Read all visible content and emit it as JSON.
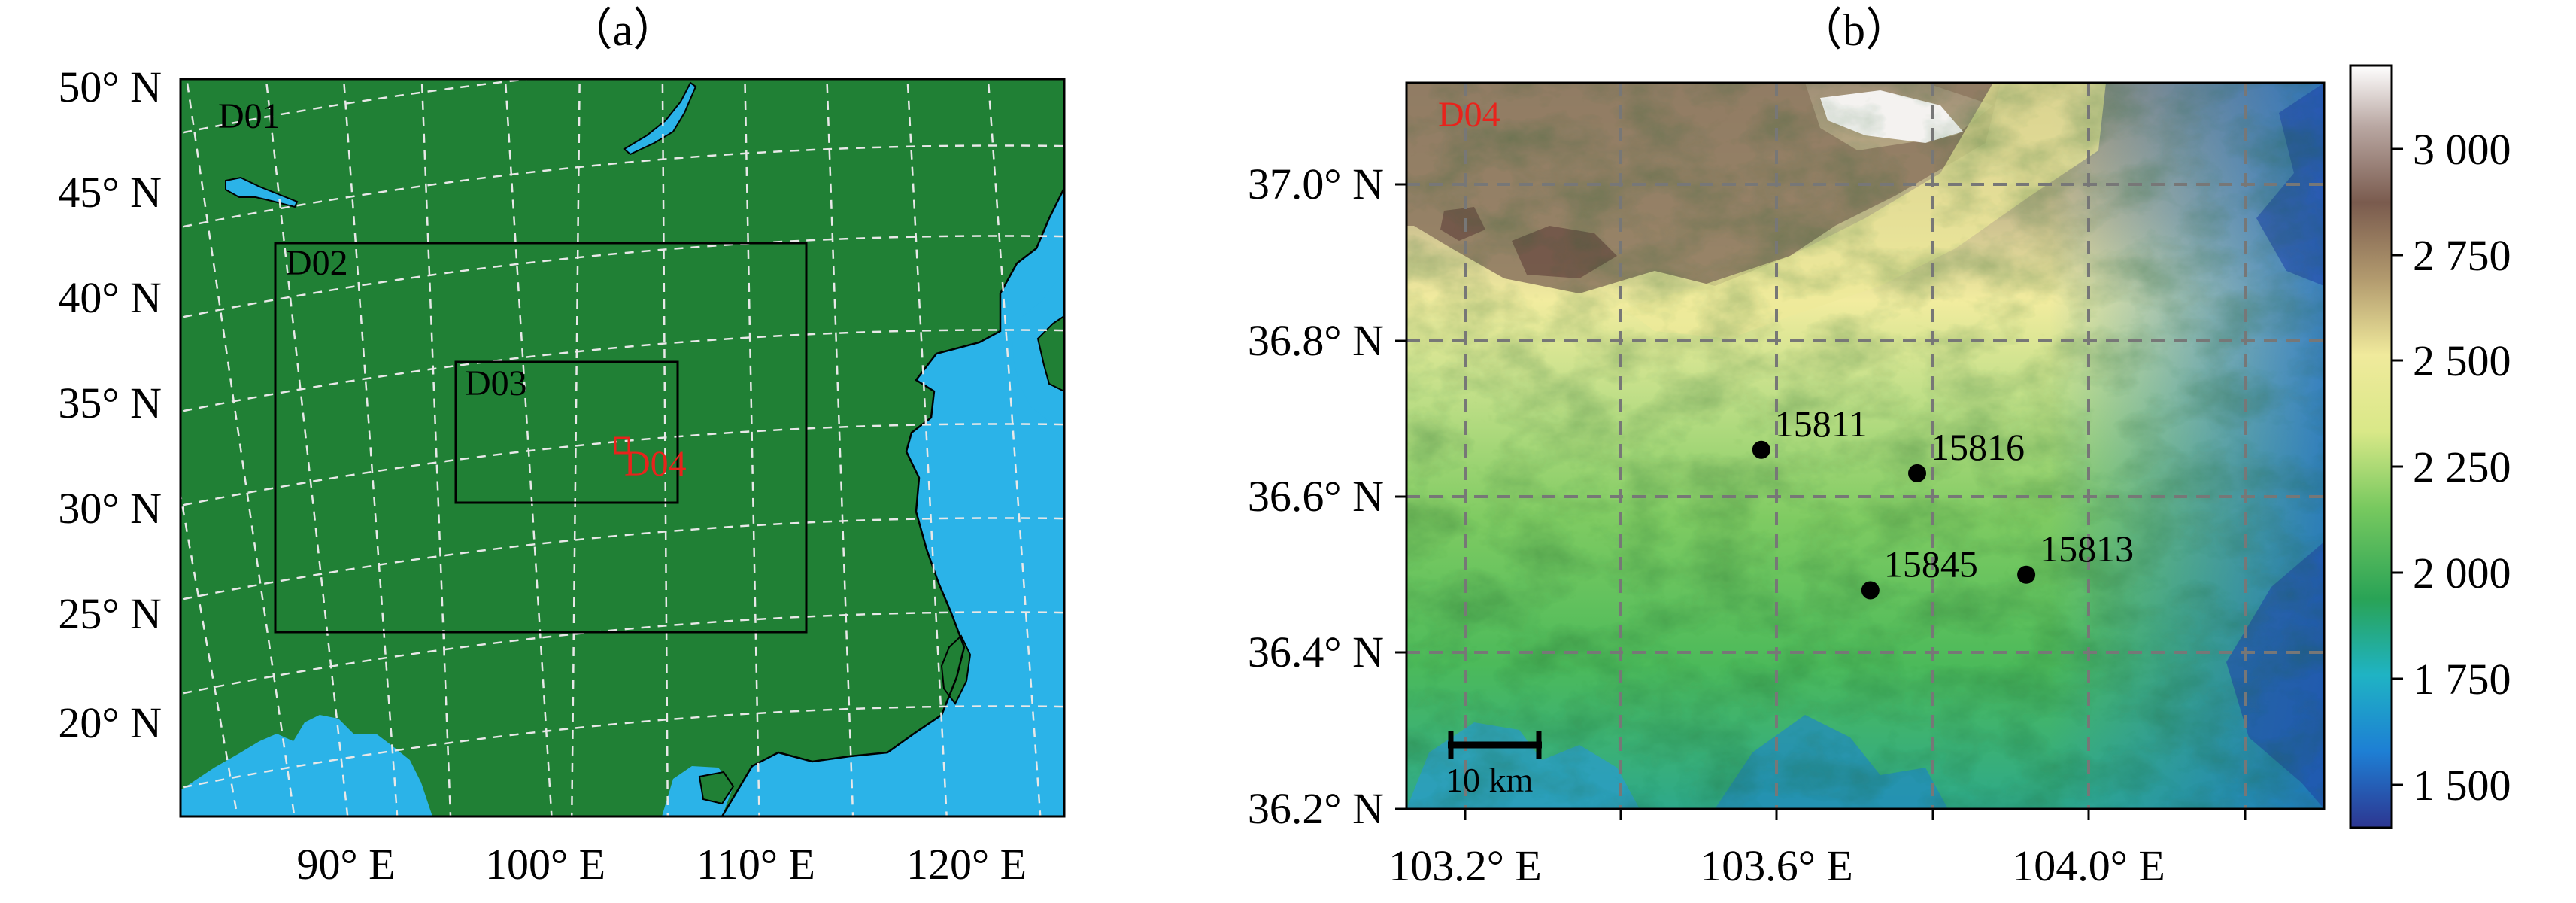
{
  "panel_a": {
    "label": "（a）",
    "lat_ticks": [
      "50° N",
      "45° N",
      "40° N",
      "35° N",
      "30° N",
      "25° N",
      "20° N"
    ],
    "lon_ticks": [
      "90° E",
      "100° E",
      "110° E",
      "120° E"
    ],
    "domains": [
      {
        "name": "D01",
        "color": "#000000"
      },
      {
        "name": "D02",
        "color": "#000000"
      },
      {
        "name": "D03",
        "color": "#000000"
      },
      {
        "name": "D04",
        "color": "#e8231c"
      }
    ],
    "colors": {
      "land": "#208035",
      "water": "#2bb3e8",
      "grid": "#e8e8e8"
    }
  },
  "panel_b": {
    "label": "（b）",
    "domain_label": "D04",
    "lat_ticks": [
      "37.0° N",
      "36.8° N",
      "36.6° N",
      "36.4° N",
      "36.2° N"
    ],
    "lon_ticks": [
      "103.2° E",
      "103.6° E",
      "104.0° E"
    ],
    "stations": [
      {
        "id": "15811",
        "lon": 103.58,
        "lat": 36.66
      },
      {
        "id": "15816",
        "lon": 103.78,
        "lat": 36.63
      },
      {
        "id": "15845",
        "lon": 103.72,
        "lat": 36.48
      },
      {
        "id": "15813",
        "lon": 103.92,
        "lat": 36.5
      }
    ],
    "scale_bar": "10 km",
    "colorbar": {
      "ticks": [
        "3 000",
        "2 750",
        "2 500",
        "2 250",
        "2 000",
        "1 750",
        "1 500"
      ],
      "range": [
        1400,
        3200
      ],
      "colormap": [
        "#2d3691",
        "#1e7fd4",
        "#1fb3c4",
        "#29a356",
        "#78c95f",
        "#d9e888",
        "#f0ea9c",
        "#b29a6e",
        "#7a5b4e",
        "#b9a7a2",
        "#ffffff"
      ]
    }
  }
}
